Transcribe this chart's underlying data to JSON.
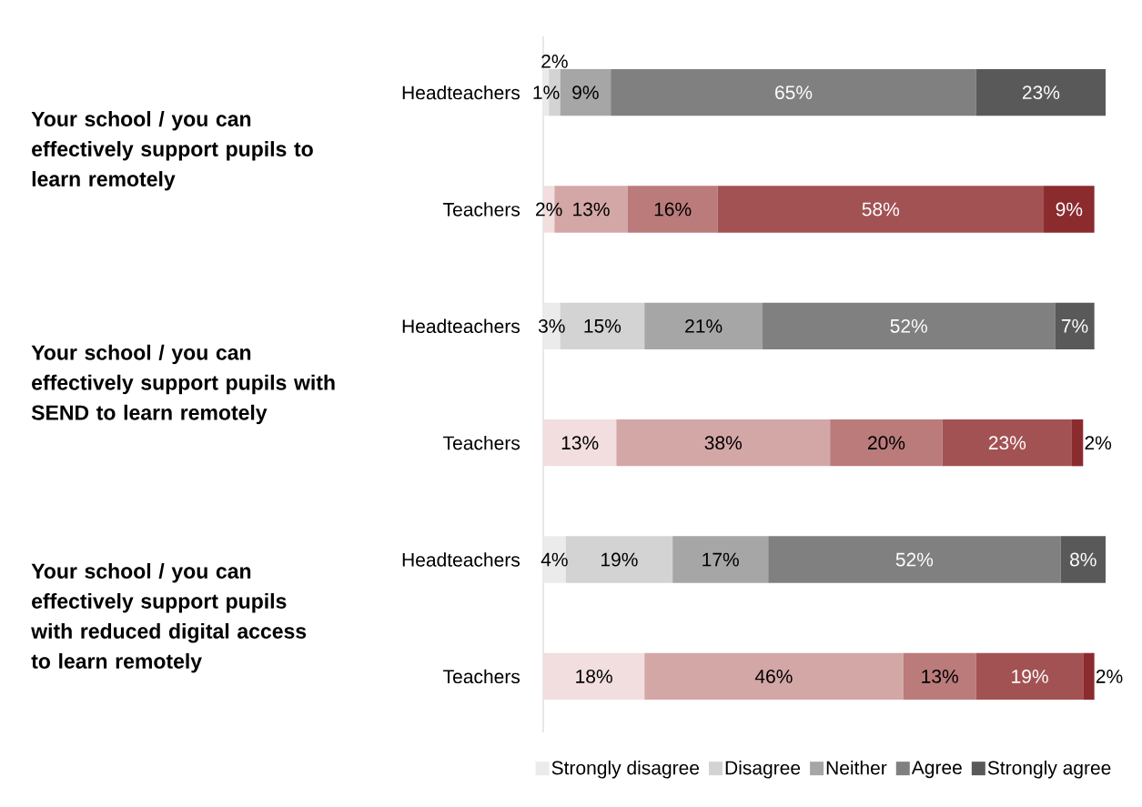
{
  "chart_data": {
    "type": "bar",
    "orientation": "horizontal",
    "stacked": true,
    "legend": "bottom",
    "categories": [
      "Headteachers",
      "Teachers",
      "Headteachers",
      "Teachers",
      "Headteachers",
      "Teachers"
    ],
    "annotations": [
      "Your school / you can effectively support pupils to learn remotely",
      "Your school / you can effectively support pupils with SEND to learn remotely",
      "Your school / you can effectively support pupils with reduced digital access to learn remotely"
    ],
    "xlim": [
      0,
      100
    ],
    "series": [
      {
        "name": "Strongly disagree",
        "color": "#ebebeb",
        "colors": [
          "#ebebeb",
          "#f2dede",
          "#ebebeb",
          "#f2dede",
          "#ebebeb",
          "#f2dede"
        ],
        "values": [
          1,
          2,
          3,
          13,
          4,
          18
        ],
        "value_labels": [
          "1%",
          "2%",
          "3%",
          "13%",
          "4%",
          "18%"
        ]
      },
      {
        "name": "Disagree",
        "color": "#d3d3d3",
        "colors": [
          "#d3d3d3",
          "#d4a7a7",
          "#d3d3d3",
          "#d4a7a7",
          "#d3d3d3",
          "#d4a7a7"
        ],
        "values": [
          2,
          13,
          15,
          38,
          19,
          46
        ],
        "value_labels": [
          "2%",
          "13%",
          "15%",
          "38%",
          "19%",
          "46%"
        ]
      },
      {
        "name": "Neither",
        "color": "#a6a6a6",
        "colors": [
          "#a6a6a6",
          "#bb7b7b",
          "#a6a6a6",
          "#bb7b7b",
          "#a6a6a6",
          "#bb7b7b"
        ],
        "values": [
          9,
          16,
          21,
          20,
          17,
          13
        ],
        "value_labels": [
          "9%",
          "16%",
          "21%",
          "20%",
          "17%",
          "13%"
        ]
      },
      {
        "name": "Agree",
        "color": "#808080",
        "colors": [
          "#808080",
          "#a35254",
          "#808080",
          "#a35254",
          "#808080",
          "#a35254"
        ],
        "values": [
          65,
          58,
          52,
          23,
          52,
          19
        ],
        "value_labels": [
          "65%",
          "58%",
          "52%",
          "23%",
          "52%",
          "19%"
        ]
      },
      {
        "name": "Strongly agree",
        "color": "#595959",
        "colors": [
          "#595959",
          "#8b2b2e",
          "#595959",
          "#8b2b2e",
          "#595959",
          "#8b2b2e"
        ],
        "values": [
          23,
          9,
          7,
          2,
          8,
          2
        ],
        "value_labels": [
          "23%",
          "9%",
          "7%",
          "2%",
          "8%",
          "2%"
        ]
      }
    ]
  }
}
